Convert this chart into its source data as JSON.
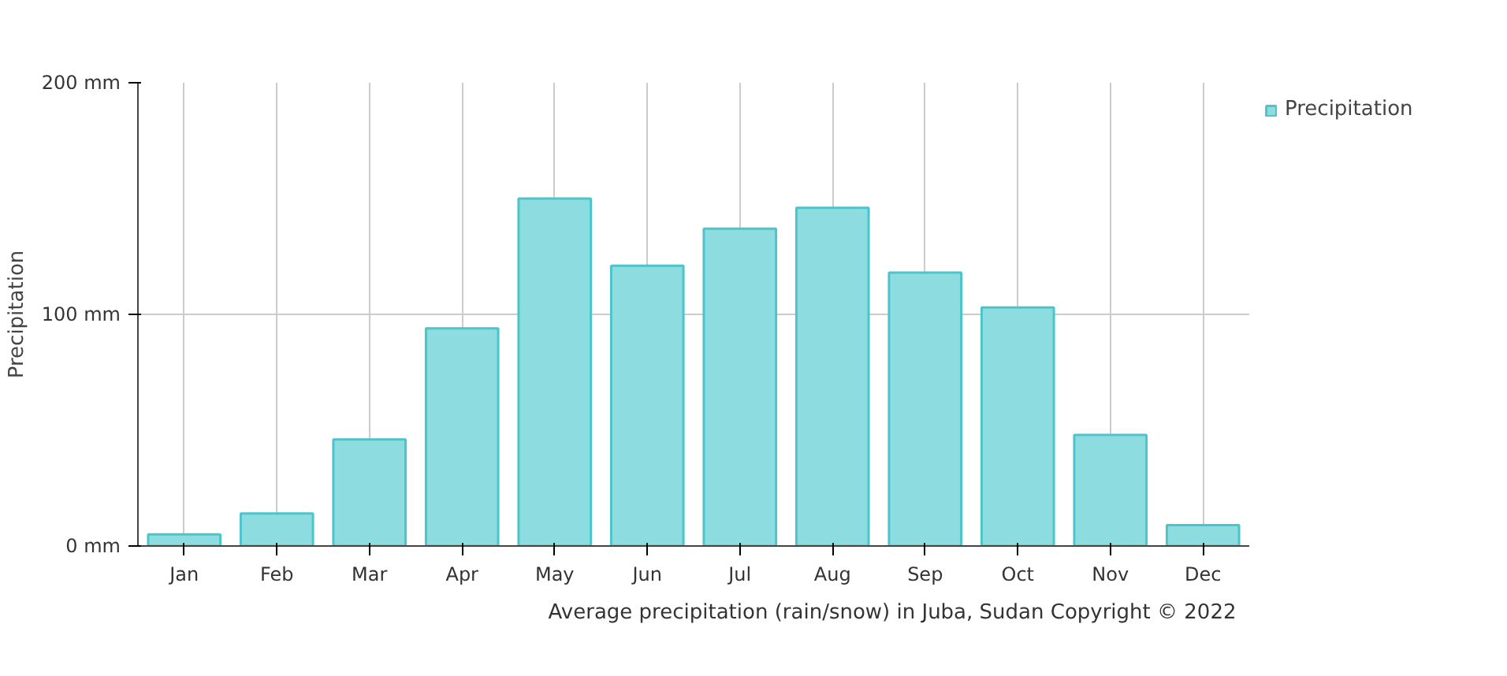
{
  "chart_data": {
    "type": "bar",
    "ylabel": "Precipitation",
    "categories": [
      "Jan",
      "Feb",
      "Mar",
      "Apr",
      "May",
      "Jun",
      "Jul",
      "Aug",
      "Sep",
      "Oct",
      "Nov",
      "Dec"
    ],
    "series": [
      {
        "name": "Precipitation",
        "color": "#8ddde0",
        "values": [
          5,
          14,
          46,
          94,
          150,
          121,
          137,
          146,
          118,
          103,
          48,
          9
        ]
      }
    ],
    "ylim": [
      0,
      200
    ],
    "yticks": [
      {
        "value": 0,
        "label": "0 mm"
      },
      {
        "value": 100,
        "label": "100 mm"
      },
      {
        "value": 200,
        "label": "200 mm"
      }
    ],
    "grid": true,
    "legend": "top right",
    "annotations": [
      "Average precipitation (rain/snow) in Juba, Sudan   Copyright © 2022"
    ]
  }
}
